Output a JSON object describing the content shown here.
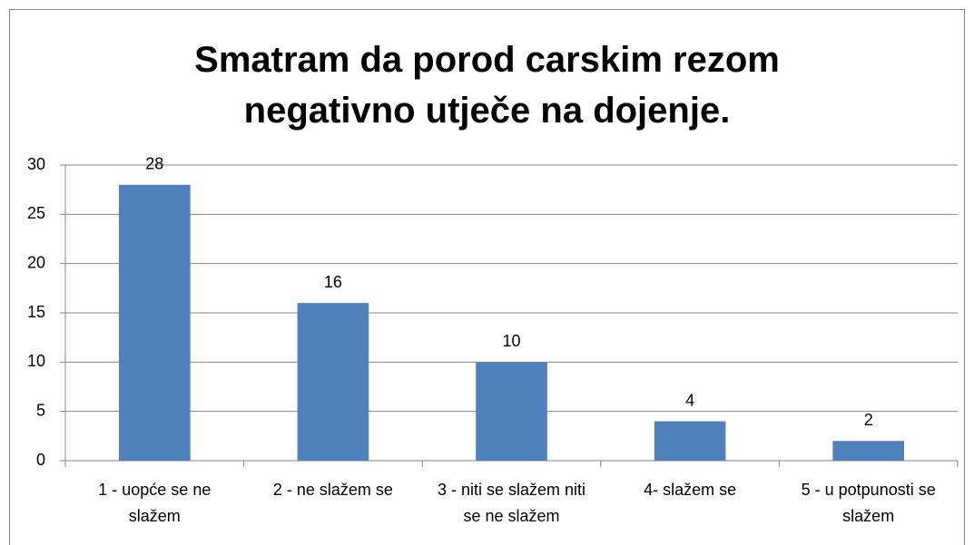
{
  "chart_data": {
    "type": "bar",
    "title": "Smatram da porod carskim rezom negativno utječe na dojenje.",
    "categories": [
      "1 - uopće se ne slažem",
      "2 - ne slažem se",
      "3 - niti se slažem niti se ne slažem",
      "4- slažem se",
      "5 - u potpunosti se slažem"
    ],
    "values": [
      28,
      16,
      10,
      4,
      2
    ],
    "color": "#4f81bd",
    "ylim": [
      0,
      30
    ],
    "yticks": [
      0,
      5,
      10,
      15,
      20,
      25,
      30
    ],
    "grid": true
  }
}
